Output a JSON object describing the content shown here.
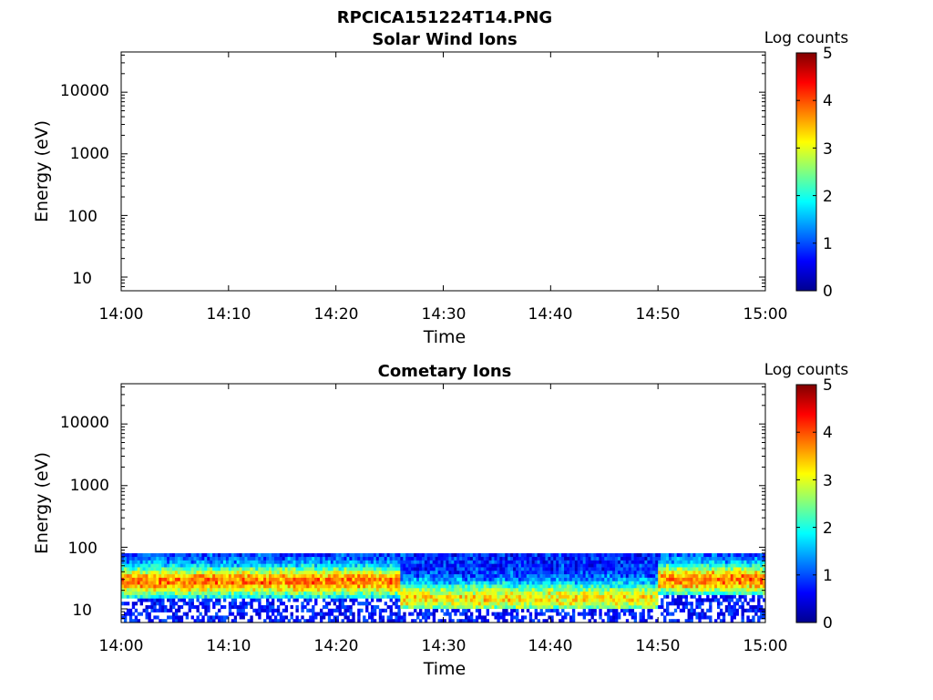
{
  "figure": {
    "title": "RPCICA151224T14.PNG"
  },
  "colors": {
    "colormap": [
      "#00008f",
      "#0000ff",
      "#0080ff",
      "#00ffff",
      "#80ff80",
      "#ffff00",
      "#ff8000",
      "#ff0000",
      "#800000"
    ],
    "axis": "#000000",
    "background": "#ffffff"
  },
  "chart_data": [
    {
      "type": "heatmap",
      "title": "Solar Wind Ions",
      "xlabel": "Time",
      "ylabel": "Energy (eV)",
      "x_tick_labels": [
        "14:00",
        "14:10",
        "14:20",
        "14:30",
        "14:40",
        "14:50",
        "15:00"
      ],
      "x_range": [
        "14:00",
        "15:00"
      ],
      "y_scale": "log",
      "y_range": [
        6,
        45000
      ],
      "y_tick_labels": [
        "10",
        "100",
        "1000",
        "10000"
      ],
      "y_ticks": [
        10,
        100,
        1000,
        10000
      ],
      "colorbar": {
        "label": "Log counts",
        "range": [
          0,
          5
        ],
        "tick_labels": [
          "0",
          "1",
          "2",
          "3",
          "4",
          "5"
        ]
      },
      "bands": []
    },
    {
      "type": "heatmap",
      "title": "Cometary Ions",
      "xlabel": "Time",
      "ylabel": "Energy (eV)",
      "x_tick_labels": [
        "14:00",
        "14:10",
        "14:20",
        "14:30",
        "14:40",
        "14:50",
        "15:00"
      ],
      "x_range": [
        "14:00",
        "15:00"
      ],
      "y_scale": "log",
      "y_range": [
        6,
        45000
      ],
      "y_tick_labels": [
        "10",
        "100",
        "1000",
        "10000"
      ],
      "y_ticks": [
        10,
        100,
        1000,
        10000
      ],
      "colorbar": {
        "label": "Log counts",
        "range": [
          0,
          5
        ],
        "tick_labels": [
          "0",
          "1",
          "2",
          "3",
          "4",
          "5"
        ]
      },
      "energy_top_ev": 80,
      "bands": [
        {
          "time_range": [
            "14:00",
            "14:26"
          ],
          "peak_energy_ev": 28,
          "peak_log_counts": 3.0,
          "low_energy_ev": 14
        },
        {
          "time_range": [
            "14:26",
            "14:50"
          ],
          "peak_energy_ev": 15,
          "peak_log_counts": 2.4,
          "low_energy_ev": 10
        },
        {
          "time_range": [
            "14:50",
            "15:00"
          ],
          "peak_energy_ev": 30,
          "peak_log_counts": 3.0,
          "low_energy_ev": 18
        }
      ]
    }
  ]
}
